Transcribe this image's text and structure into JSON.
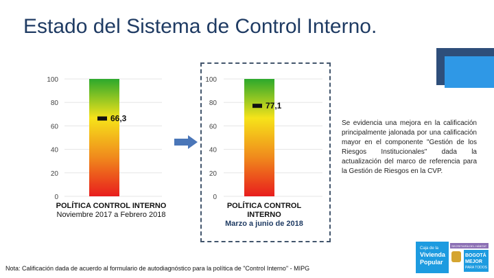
{
  "title": "Estado del Sistema de Control Interno.",
  "chart_data": [
    {
      "type": "bar",
      "categories": [
        "POLÍTICA CONTROL INTERNO"
      ],
      "values": [
        66.3
      ],
      "value_label": "66,3",
      "ylim": [
        0,
        100
      ],
      "y_ticks": [
        0,
        20,
        40,
        60,
        80,
        100
      ],
      "caption_title": "POLÍTICA CONTROL INTERNO",
      "caption_sub": "Noviembre 2017 a Febrero 2018",
      "gradient": [
        "#e81d1d",
        "#f08a1c",
        "#f6e31a",
        "#2ca82c"
      ]
    },
    {
      "type": "bar",
      "categories": [
        "POLÍTICA CONTROL INTERNO"
      ],
      "values": [
        77.1
      ],
      "value_label": "77,1",
      "ylim": [
        0,
        100
      ],
      "y_ticks": [
        0,
        20,
        40,
        60,
        80,
        100
      ],
      "caption_title": "POLÍTICA CONTROL INTERNO",
      "caption_sub": "Marzo a junio de 2018",
      "gradient": [
        "#e81d1d",
        "#f08a1c",
        "#f6e31a",
        "#2ca82c"
      ]
    }
  ],
  "description": "Se evidencia una mejora en la calificación principalmente jalonada por una calificación mayor en el componente \"Gestión de los Riesgos Institucionales\" dada la actualización del marco de referencia para la Gestión de Riesgos en la CVP.",
  "footnote": "Nota: Calificación dada de acuerdo al formulario de autodiagnóstico para la política de \"Control Interno\" - MIPG",
  "logo": {
    "line1": "Caja de la",
    "line2": "Vivienda",
    "line3": "Popular",
    "tag": "SECRETARÍA DEL HÁBITAT",
    "city1": "BOGOTÁ",
    "city2": "MEJOR",
    "city3": "PARA TODOS"
  },
  "colors": {
    "title": "#1f3b63",
    "arrow": "#4a76b8",
    "accent": "#2f98e6"
  }
}
